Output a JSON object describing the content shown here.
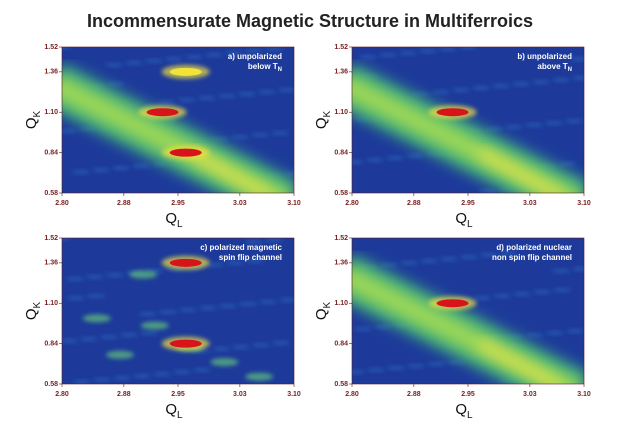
{
  "title": "Incommensurate Magnetic Structure in Multiferroics",
  "chart_data": [
    {
      "type": "heatmap",
      "annotation": [
        "a) unpolarized",
        "below T"
      ],
      "annotation_sub": "N",
      "xlabel": "Q",
      "xlabel_sub": "L",
      "ylabel": "Q",
      "ylabel_sub": "K",
      "xlim": [
        2.8,
        3.1
      ],
      "ylim": [
        0.58,
        1.52
      ],
      "xticks": [
        {
          "value": 2.8,
          "label": "2.80"
        },
        2.88,
        2.95,
        3.03,
        {
          "value": 3.1,
          "label": "3.10"
        }
      ],
      "yticks": [
        0.58,
        0.84,
        {
          "value": 1.1,
          "label": "1.10"
        },
        1.36,
        1.52
      ],
      "ridge": true,
      "peaks": [
        {
          "x": 2.93,
          "y": 1.1,
          "color": "#d8141a"
        },
        {
          "x": 2.96,
          "y": 0.84,
          "color": "#d8141a"
        },
        {
          "x": 2.96,
          "y": 1.36,
          "color": "#f2e33a"
        }
      ]
    },
    {
      "type": "heatmap",
      "annotation": [
        "b) unpolarized",
        "above T"
      ],
      "annotation_sub": "N",
      "xlabel": "Q",
      "xlabel_sub": "L",
      "ylabel": "Q",
      "ylabel_sub": "K",
      "xlim": [
        2.8,
        3.1
      ],
      "ylim": [
        0.58,
        1.52
      ],
      "xticks": [
        {
          "value": 2.8,
          "label": "2.80"
        },
        2.88,
        2.95,
        3.03,
        {
          "value": 3.1,
          "label": "3.10"
        }
      ],
      "yticks": [
        0.58,
        0.84,
        {
          "value": 1.1,
          "label": "1.10"
        },
        1.36,
        1.52
      ],
      "ridge": true,
      "peaks": [
        {
          "x": 2.93,
          "y": 1.1,
          "color": "#d8141a"
        }
      ]
    },
    {
      "type": "heatmap",
      "annotation": [
        "c) polarized magnetic",
        "spin flip channel"
      ],
      "xlabel": "Q",
      "xlabel_sub": "L",
      "ylabel": "Q",
      "ylabel_sub": "K",
      "xlim": [
        2.8,
        3.1
      ],
      "ylim": [
        0.58,
        1.52
      ],
      "xticks": [
        {
          "value": 2.8,
          "label": "2.80"
        },
        2.88,
        2.95,
        3.03,
        {
          "value": 3.1,
          "label": "3.10"
        }
      ],
      "yticks": [
        0.58,
        0.84,
        {
          "value": 1.1,
          "label": "1.10"
        },
        1.36,
        1.52
      ],
      "ridge": false,
      "peaks": [
        {
          "x": 2.96,
          "y": 1.36,
          "color": "#d8141a"
        },
        {
          "x": 2.96,
          "y": 0.84,
          "color": "#d8141a"
        }
      ]
    },
    {
      "type": "heatmap",
      "annotation": [
        "d) polarized nuclear",
        "non spin flip channel"
      ],
      "xlabel": "Q",
      "xlabel_sub": "L",
      "ylabel": "Q",
      "ylabel_sub": "K",
      "xlim": [
        2.8,
        3.1
      ],
      "ylim": [
        0.58,
        1.52
      ],
      "xticks": [
        {
          "value": 2.8,
          "label": "2.80"
        },
        2.88,
        2.95,
        3.03,
        {
          "value": 3.1,
          "label": "3.10"
        }
      ],
      "yticks": [
        0.58,
        0.84,
        {
          "value": 1.1,
          "label": "1.10"
        },
        1.36,
        1.52
      ],
      "ridge": true,
      "peaks": [
        {
          "x": 2.93,
          "y": 1.1,
          "color": "#d8141a"
        }
      ]
    }
  ]
}
